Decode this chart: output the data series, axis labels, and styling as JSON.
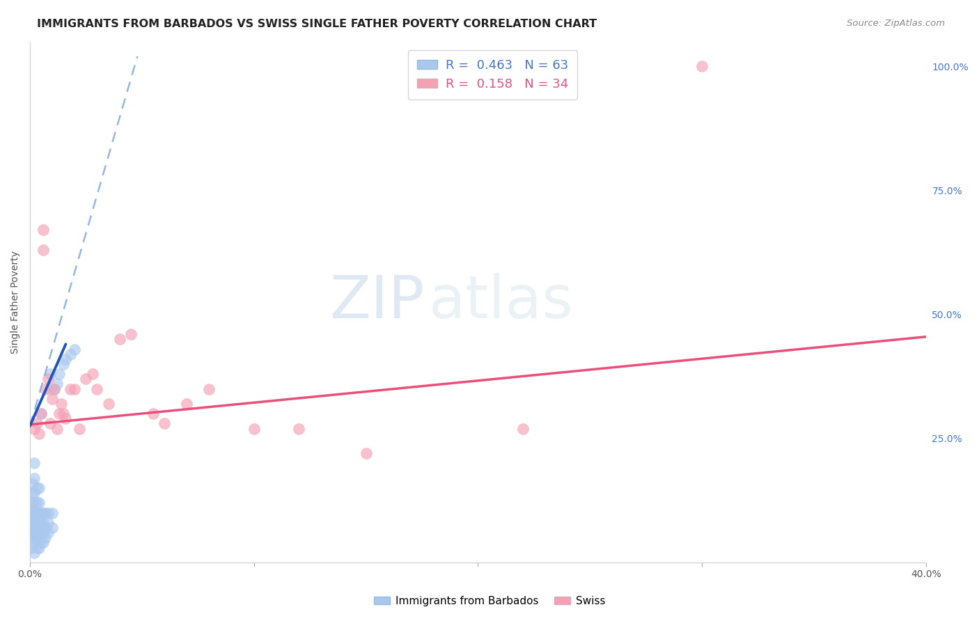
{
  "title": "IMMIGRANTS FROM BARBADOS VS SWISS SINGLE FATHER POVERTY CORRELATION CHART",
  "source": "Source: ZipAtlas.com",
  "ylabel": "Single Father Poverty",
  "xlim": [
    0.0,
    0.4
  ],
  "ylim": [
    0.0,
    1.05
  ],
  "grid_color": "#e0e0e0",
  "background_color": "#ffffff",
  "watermark_zip": "ZIP",
  "watermark_atlas": "atlas",
  "series1_label": "Immigrants from Barbados",
  "series2_label": "Swiss",
  "series1_R": "0.463",
  "series1_N": "63",
  "series2_R": "0.158",
  "series2_N": "34",
  "series1_color": "#aac8ee",
  "series2_color": "#f4a0b5",
  "trendline1_solid_color": "#2255bb",
  "trendline2_color": "#e8507a",
  "trendline1_dash_color": "#88b0dd",
  "series1_x": [
    0.001,
    0.001,
    0.001,
    0.001,
    0.001,
    0.001,
    0.001,
    0.001,
    0.001,
    0.001,
    0.002,
    0.002,
    0.002,
    0.002,
    0.002,
    0.002,
    0.002,
    0.002,
    0.002,
    0.002,
    0.002,
    0.002,
    0.003,
    0.003,
    0.003,
    0.003,
    0.003,
    0.003,
    0.003,
    0.003,
    0.004,
    0.004,
    0.004,
    0.004,
    0.004,
    0.004,
    0.004,
    0.005,
    0.005,
    0.005,
    0.005,
    0.005,
    0.006,
    0.006,
    0.006,
    0.006,
    0.007,
    0.007,
    0.007,
    0.008,
    0.008,
    0.008,
    0.009,
    0.009,
    0.01,
    0.01,
    0.011,
    0.012,
    0.013,
    0.015,
    0.016,
    0.018,
    0.02
  ],
  "series1_y": [
    0.03,
    0.05,
    0.06,
    0.07,
    0.08,
    0.1,
    0.11,
    0.12,
    0.14,
    0.16,
    0.02,
    0.04,
    0.05,
    0.06,
    0.07,
    0.08,
    0.09,
    0.1,
    0.12,
    0.14,
    0.17,
    0.2,
    0.03,
    0.05,
    0.06,
    0.07,
    0.09,
    0.1,
    0.12,
    0.15,
    0.03,
    0.05,
    0.06,
    0.08,
    0.1,
    0.12,
    0.15,
    0.04,
    0.06,
    0.08,
    0.1,
    0.3,
    0.04,
    0.06,
    0.08,
    0.1,
    0.05,
    0.07,
    0.1,
    0.06,
    0.08,
    0.1,
    0.35,
    0.38,
    0.07,
    0.1,
    0.35,
    0.36,
    0.38,
    0.4,
    0.41,
    0.42,
    0.43
  ],
  "series2_x": [
    0.002,
    0.003,
    0.004,
    0.005,
    0.006,
    0.006,
    0.007,
    0.008,
    0.009,
    0.01,
    0.011,
    0.012,
    0.013,
    0.014,
    0.015,
    0.016,
    0.018,
    0.02,
    0.022,
    0.025,
    0.028,
    0.03,
    0.035,
    0.04,
    0.045,
    0.055,
    0.06,
    0.07,
    0.08,
    0.1,
    0.12,
    0.15,
    0.22,
    0.3
  ],
  "series2_y": [
    0.27,
    0.28,
    0.26,
    0.3,
    0.67,
    0.63,
    0.35,
    0.37,
    0.28,
    0.33,
    0.35,
    0.27,
    0.3,
    0.32,
    0.3,
    0.29,
    0.35,
    0.35,
    0.27,
    0.37,
    0.38,
    0.35,
    0.32,
    0.45,
    0.46,
    0.3,
    0.28,
    0.32,
    0.35,
    0.27,
    0.27,
    0.22,
    0.27,
    1.0
  ],
  "trend1_x0": 0.0,
  "trend1_y0": 0.275,
  "trend1_x1": 0.016,
  "trend1_y1": 0.44,
  "trend1_dash_x0": 0.0,
  "trend1_dash_y0": 0.275,
  "trend1_dash_x1": 0.048,
  "trend1_dash_y1": 1.02,
  "trend2_x0": 0.0,
  "trend2_y0": 0.278,
  "trend2_x1": 0.4,
  "trend2_y1": 0.455
}
